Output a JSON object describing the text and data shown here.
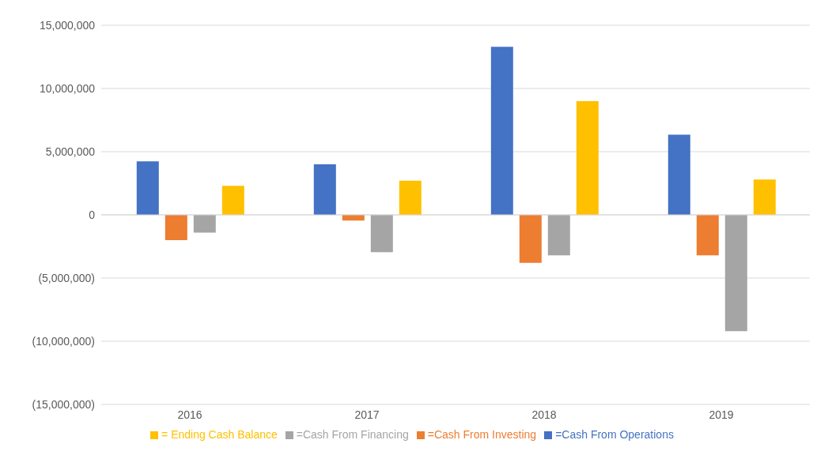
{
  "chart_data": {
    "type": "bar",
    "categories": [
      "2016",
      "2017",
      "2018",
      "2019"
    ],
    "series": [
      {
        "name": "=Cash From Operations",
        "color": "#4472c4",
        "values": [
          4230000,
          4000000,
          13300000,
          6350000
        ]
      },
      {
        "name": "=Cash From Investing",
        "color": "#ed7d31",
        "values": [
          -2000000,
          -450000,
          -3800000,
          -3200000
        ]
      },
      {
        "name": "=Cash From Financing",
        "color": "#a5a5a5",
        "values": [
          -1400000,
          -2950000,
          -3200000,
          -9200000
        ]
      },
      {
        "name": "= Ending Cash Balance",
        "color": "#ffc000",
        "values": [
          2300000,
          2700000,
          9000000,
          2800000
        ]
      }
    ],
    "ylim": [
      -15000000,
      15000000
    ],
    "yticks": [
      {
        "value": -15000000,
        "label": "(15,000,000)"
      },
      {
        "value": -10000000,
        "label": "(10,000,000)"
      },
      {
        "value": -5000000,
        "label": "(5,000,000)"
      },
      0,
      {
        "value": 5000000,
        "label": "5,000,000"
      },
      {
        "value": 10000000,
        "label": "10,000,000"
      },
      {
        "value": 15000000,
        "label": "15,000,000"
      }
    ],
    "grid": "y",
    "legend": "bottom"
  }
}
